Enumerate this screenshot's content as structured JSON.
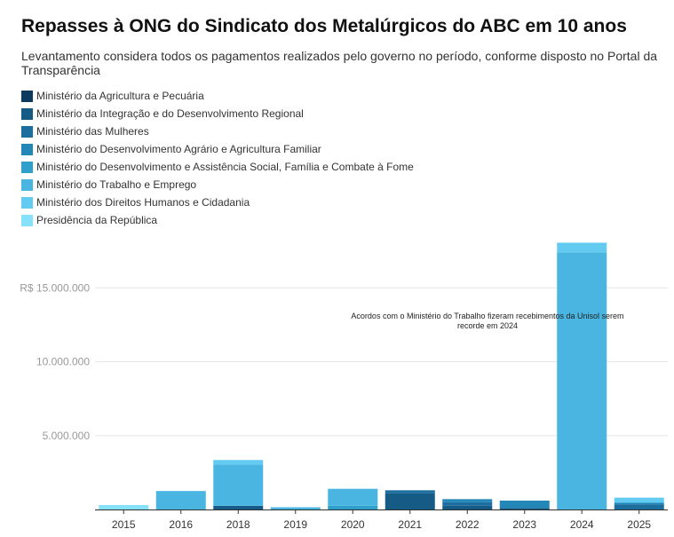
{
  "header": {
    "title": "Repasses à ONG do Sindicato dos Metalúrgicos do ABC em 10 anos",
    "subtitle": "Levantamento considera todos os pagamentos realizados pelo governo no período, conforme disposto no Portal da Transparência"
  },
  "chart_data": {
    "type": "bar",
    "stacked": true,
    "categories": [
      "2015",
      "2016",
      "2018",
      "2019",
      "2020",
      "2021",
      "2022",
      "2023",
      "2024",
      "2025"
    ],
    "ylim": [
      0,
      18500000
    ],
    "yticks": [
      5000000,
      10000000,
      15000000
    ],
    "ytick_labels": [
      "5.000.000",
      "10.000.000",
      "R$ 15.000.000"
    ],
    "grid": true,
    "legend_position": "top-left",
    "series": [
      {
        "name": "Ministério da Agricultura e Pecuária",
        "color": "#0d3b5e",
        "values": [
          0,
          0,
          0,
          0,
          0,
          0,
          0,
          0,
          0,
          0
        ]
      },
      {
        "name": "Ministério da Integração e do Desenvolvimento Regional",
        "color": "#165a86",
        "values": [
          0,
          0,
          250000,
          0,
          0,
          1100000,
          250000,
          100000,
          0,
          0
        ]
      },
      {
        "name": "Ministério das Mulheres",
        "color": "#1b6e9e",
        "values": [
          0,
          0,
          0,
          0,
          0,
          200000,
          250000,
          0,
          0,
          350000
        ]
      },
      {
        "name": "Ministério do Desenvolvimento Agrário e Agricultura Familiar",
        "color": "#2388b8",
        "values": [
          0,
          0,
          0,
          0,
          0,
          0,
          200000,
          500000,
          0,
          100000
        ]
      },
      {
        "name": "Ministério do Desenvolvimento e Assistência Social, Família e Combate à Fome",
        "color": "#2f9fcc",
        "values": [
          0,
          0,
          0,
          0,
          250000,
          0,
          0,
          0,
          0,
          0
        ]
      },
      {
        "name": "Ministério do Trabalho e Emprego",
        "color": "#4ab5e0",
        "values": [
          0,
          1250000,
          2800000,
          150000,
          1150000,
          0,
          0,
          0,
          17400000,
          0
        ]
      },
      {
        "name": "Ministério dos Direitos Humanos e Cidadania",
        "color": "#63caf2",
        "values": [
          0,
          0,
          300000,
          0,
          0,
          0,
          0,
          0,
          650000,
          350000
        ]
      },
      {
        "name": "Presidência da República",
        "color": "#86e1fc",
        "values": [
          300000,
          0,
          0,
          0,
          0,
          0,
          0,
          0,
          0,
          0
        ]
      }
    ],
    "annotations": [
      {
        "text": "Acordos com o Ministério do Trabalho fizeram recebimentos da Unisol serem recorde em 2024",
        "lines": [
          "Acordos com o Ministério do Trabalho fizeram recebimentos da Unisol serem",
          "recorde em 2024"
        ]
      }
    ]
  }
}
